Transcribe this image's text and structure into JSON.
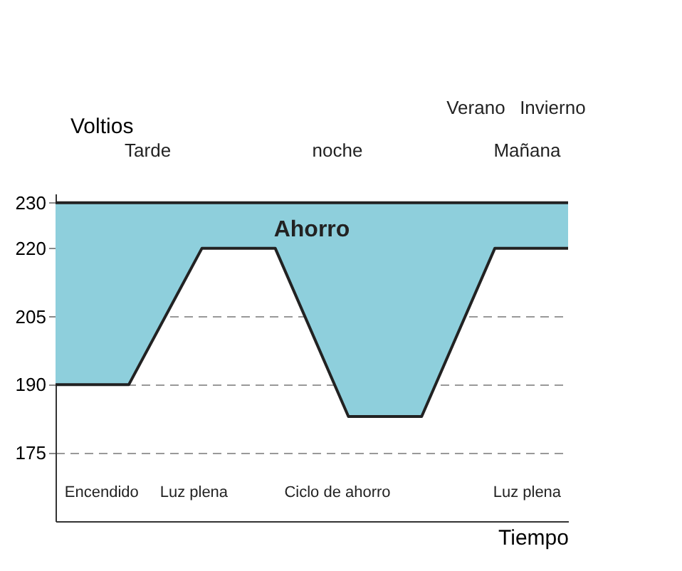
{
  "chart_data": {
    "type": "line",
    "ylabel": "Voltios",
    "xlabel": "Tiempo",
    "categories": [
      null,
      null,
      null,
      null,
      null,
      null,
      null,
      null
    ],
    "series": [
      {
        "color": "#222222",
        "values": [
          190,
          190,
          220,
          220,
          183,
          183,
          220,
          220
        ],
        "lower": [
          190,
          190,
          220,
          220,
          183,
          183,
          220,
          220
        ],
        "upper": [
          230,
          230,
          230,
          230,
          230,
          230,
          230,
          230
        ]
      }
    ],
    "ref_lines": [
      {
        "axis": "y",
        "value": 230,
        "color": "#222222",
        "line_style": "solid"
      }
    ],
    "ylim": [
      160,
      232
    ],
    "yticks": [
      175,
      190,
      205,
      220,
      230
    ],
    "grid": "y",
    "tick_labels": "y",
    "annotations": [
      "Ahorro",
      "Verano",
      "Invierno",
      "Tarde",
      "noche",
      "Mañana",
      "Encendido",
      "Luz plena",
      "Ciclo de ahorro",
      "Luz plena"
    ]
  }
}
